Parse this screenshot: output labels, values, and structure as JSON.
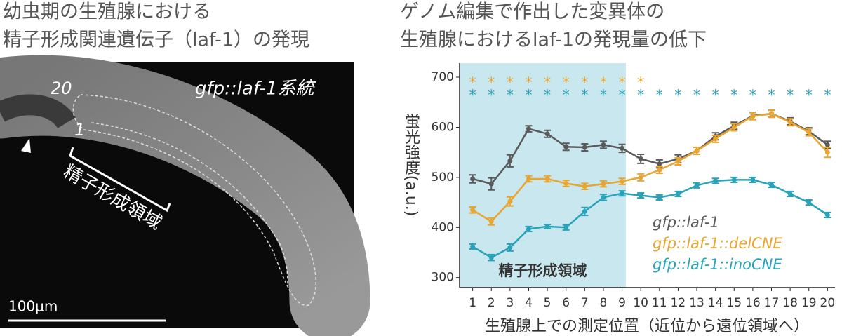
{
  "image_panel": {
    "title_lines": [
      "幼虫期の生殖腺における",
      "精子形成関連遺伝子（laf-1）の発現"
    ],
    "strain_label": "gfp::laf-1系統",
    "position_top": "20",
    "position_bottom": "1",
    "region_label": "精子形成領域",
    "scale_label": "100μm"
  },
  "chart_data": {
    "type": "line",
    "title_lines": [
      "ゲノム編集で作出した変異体の",
      "生殖腺におけるlaf-1の発現量の低下"
    ],
    "y_label": "蛍光強度(a.u.)",
    "x_label": "生殖腺上での測定位置（近位から遠位領域へ）",
    "x": [
      1,
      2,
      3,
      4,
      5,
      6,
      7,
      8,
      9,
      10,
      11,
      12,
      13,
      14,
      15,
      16,
      17,
      18,
      19,
      20
    ],
    "xlim": [
      0.3,
      20.4
    ],
    "xticks": [
      1,
      2,
      3,
      4,
      5,
      6,
      7,
      8,
      9,
      10,
      11,
      12,
      13,
      14,
      15,
      16,
      17,
      18,
      19,
      20
    ],
    "ylim": [
      280,
      728
    ],
    "yticks": [
      300,
      400,
      500,
      600,
      700
    ],
    "legend": "lower right",
    "shaded_region": {
      "xlim": [
        0.3,
        9.2
      ],
      "label": "精子形成領域",
      "color": "#c8e7ef"
    },
    "series": [
      {
        "name": "gfp::laf-1",
        "color": "#5a5a5a",
        "values": [
          497,
          487,
          533,
          597,
          587,
          561,
          560,
          565,
          558,
          537,
          527,
          537,
          553,
          582,
          603,
          623,
          627,
          612,
          592,
          565
        ],
        "errors": [
          8,
          12,
          12,
          6,
          7,
          7,
          7,
          7,
          8,
          9,
          8,
          8,
          7,
          7,
          7,
          7,
          7,
          7,
          7,
          7
        ]
      },
      {
        "name": "gfp::laf-1::delCNE",
        "color": "#e8a530",
        "values": [
          435,
          412,
          452,
          497,
          497,
          488,
          482,
          487,
          492,
          500,
          515,
          532,
          553,
          577,
          600,
          622,
          627,
          610,
          590,
          550
        ],
        "errors": [
          6,
          7,
          9,
          6,
          6,
          6,
          6,
          6,
          6,
          7,
          7,
          7,
          7,
          7,
          7,
          7,
          7,
          7,
          7,
          10
        ]
      },
      {
        "name": "gfp::laf-1::inoCNE",
        "color": "#2aa3b8",
        "values": [
          362,
          340,
          360,
          397,
          402,
          400,
          432,
          460,
          468,
          464,
          460,
          467,
          484,
          493,
          495,
          495,
          485,
          467,
          450,
          425
        ],
        "errors": [
          5,
          6,
          7,
          5,
          4,
          5,
          8,
          6,
          5,
          5,
          5,
          5,
          5,
          5,
          5,
          5,
          5,
          5,
          5,
          5
        ]
      }
    ],
    "significance": [
      {
        "label": "*",
        "color": "#e8a530",
        "y": 693,
        "positions": [
          1,
          2,
          3,
          4,
          5,
          6,
          7,
          8,
          9,
          10
        ]
      },
      {
        "label": "*",
        "color": "#2aa3b8",
        "y": 668,
        "positions": [
          1,
          2,
          3,
          4,
          5,
          6,
          7,
          8,
          9,
          10,
          11,
          12,
          13,
          14,
          15,
          16,
          17,
          18,
          19,
          20
        ]
      }
    ]
  }
}
